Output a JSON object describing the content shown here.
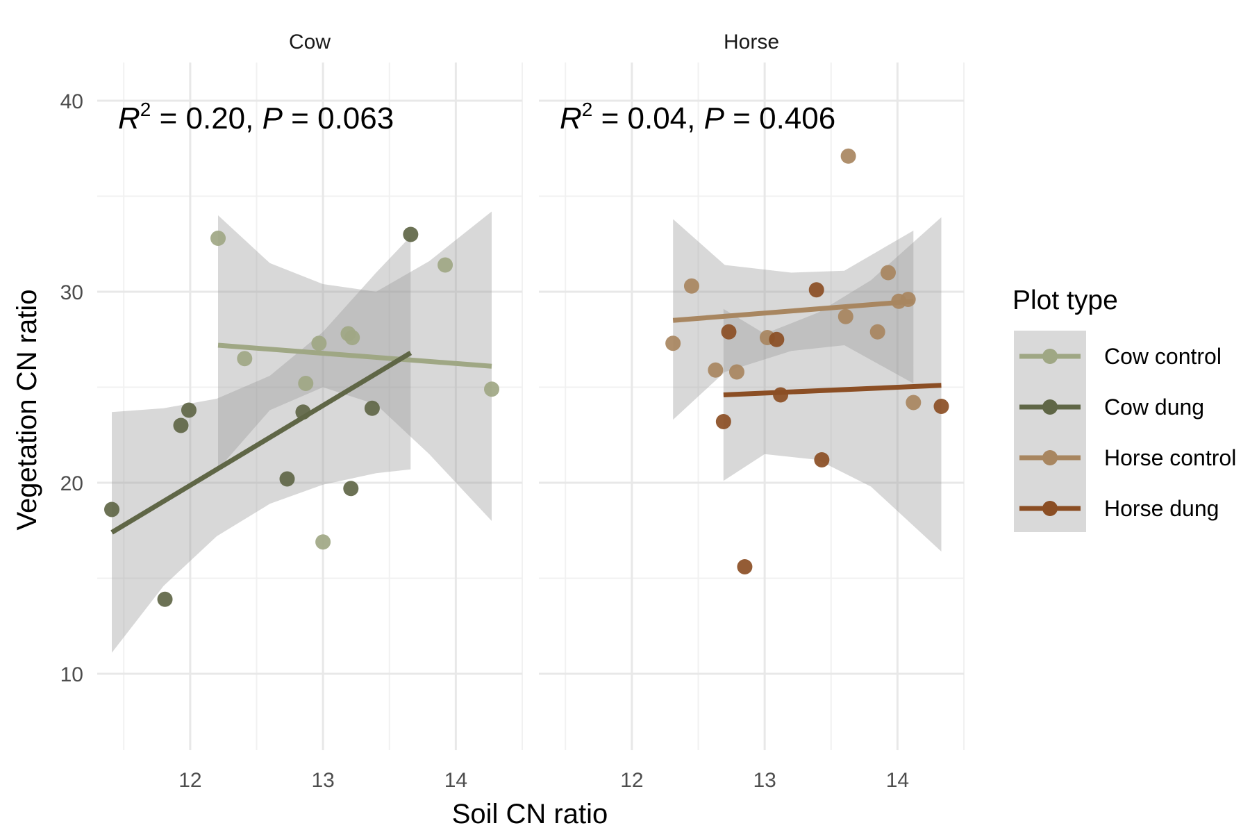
{
  "chart_data": {
    "type": "scatter",
    "xlabel": "Soil CN ratio",
    "ylabel": "Vegetation CN ratio",
    "x_ticks": [
      12,
      13,
      14
    ],
    "y_ticks": [
      10,
      20,
      30,
      40
    ],
    "legend": {
      "title": "Plot type",
      "placement": "right",
      "items": [
        {
          "label": "Cow control",
          "color": "#9fa784"
        },
        {
          "label": "Cow dung",
          "color": "#5f6646"
        },
        {
          "label": "Horse control",
          "color": "#a88660"
        },
        {
          "label": "Horse dung",
          "color": "#8b4e24"
        }
      ]
    },
    "panels": [
      {
        "title": "Cow",
        "annotation": {
          "r2": "0.20",
          "p": "0.063"
        },
        "points": [
          {
            "group": "Cow control",
            "x": 12.21,
            "y": 32.8
          },
          {
            "group": "Cow control",
            "x": 12.41,
            "y": 26.5
          },
          {
            "group": "Cow control",
            "x": 12.87,
            "y": 25.2
          },
          {
            "group": "Cow control",
            "x": 12.97,
            "y": 27.3
          },
          {
            "group": "Cow control",
            "x": 13.0,
            "y": 16.9
          },
          {
            "group": "Cow control",
            "x": 13.19,
            "y": 27.8
          },
          {
            "group": "Cow control",
            "x": 13.22,
            "y": 27.6
          },
          {
            "group": "Cow control",
            "x": 13.92,
            "y": 31.4
          },
          {
            "group": "Cow control",
            "x": 14.27,
            "y": 24.9
          },
          {
            "group": "Cow dung",
            "x": 11.41,
            "y": 18.6
          },
          {
            "group": "Cow dung",
            "x": 11.81,
            "y": 13.9
          },
          {
            "group": "Cow dung",
            "x": 11.93,
            "y": 23.0
          },
          {
            "group": "Cow dung",
            "x": 11.99,
            "y": 23.8
          },
          {
            "group": "Cow dung",
            "x": 12.73,
            "y": 20.2
          },
          {
            "group": "Cow dung",
            "x": 12.85,
            "y": 23.7
          },
          {
            "group": "Cow dung",
            "x": 13.21,
            "y": 19.7
          },
          {
            "group": "Cow dung",
            "x": 13.37,
            "y": 23.9
          },
          {
            "group": "Cow dung",
            "x": 13.66,
            "y": 33.0
          }
        ],
        "fits": [
          {
            "group": "Cow control",
            "x": [
              12.21,
              14.27
            ],
            "y": [
              27.2,
              26.1
            ],
            "band_x": [
              12.21,
              12.6,
              13.0,
              13.4,
              13.8,
              14.27
            ],
            "band_lower": [
              20.7,
              23.8,
              25.0,
              24.1,
              21.5,
              18.0
            ],
            "band_upper": [
              34.0,
              31.5,
              30.4,
              30.0,
              31.6,
              34.2
            ]
          },
          {
            "group": "Cow dung",
            "x": [
              11.41,
              13.66
            ],
            "y": [
              17.4,
              26.8
            ],
            "band_x": [
              11.41,
              11.8,
              12.2,
              12.6,
              13.0,
              13.4,
              13.66
            ],
            "band_lower": [
              11.1,
              14.6,
              17.2,
              18.9,
              19.9,
              20.5,
              20.7
            ],
            "band_upper": [
              23.7,
              23.9,
              24.4,
              25.6,
              27.9,
              31.0,
              32.9
            ]
          }
        ]
      },
      {
        "title": "Horse",
        "annotation": {
          "r2": "0.04",
          "p": "0.406"
        },
        "points": [
          {
            "group": "Horse control",
            "x": 12.31,
            "y": 27.3
          },
          {
            "group": "Horse control",
            "x": 12.45,
            "y": 30.3
          },
          {
            "group": "Horse control",
            "x": 12.63,
            "y": 25.9
          },
          {
            "group": "Horse control",
            "x": 12.79,
            "y": 25.8
          },
          {
            "group": "Horse control",
            "x": 13.02,
            "y": 27.6
          },
          {
            "group": "Horse control",
            "x": 13.61,
            "y": 28.7
          },
          {
            "group": "Horse control",
            "x": 13.63,
            "y": 37.1
          },
          {
            "group": "Horse control",
            "x": 13.85,
            "y": 27.9
          },
          {
            "group": "Horse control",
            "x": 13.93,
            "y": 31.0
          },
          {
            "group": "Horse control",
            "x": 14.01,
            "y": 29.5
          },
          {
            "group": "Horse control",
            "x": 14.08,
            "y": 29.6
          },
          {
            "group": "Horse control",
            "x": 14.12,
            "y": 24.2
          },
          {
            "group": "Horse dung",
            "x": 12.69,
            "y": 23.2
          },
          {
            "group": "Horse dung",
            "x": 12.73,
            "y": 27.9
          },
          {
            "group": "Horse dung",
            "x": 12.85,
            "y": 15.6
          },
          {
            "group": "Horse dung",
            "x": 13.09,
            "y": 27.5
          },
          {
            "group": "Horse dung",
            "x": 13.12,
            "y": 24.6
          },
          {
            "group": "Horse dung",
            "x": 13.39,
            "y": 30.1
          },
          {
            "group": "Horse dung",
            "x": 13.43,
            "y": 21.2
          },
          {
            "group": "Horse dung",
            "x": 14.33,
            "y": 24.0
          }
        ],
        "fits": [
          {
            "group": "Horse control",
            "x": [
              12.31,
              14.12
            ],
            "y": [
              28.5,
              29.5
            ],
            "band_x": [
              12.31,
              12.7,
              13.2,
              13.6,
              14.12
            ],
            "band_lower": [
              23.3,
              25.8,
              26.9,
              27.2,
              25.2
            ],
            "band_upper": [
              33.8,
              31.4,
              31.0,
              31.1,
              33.2
            ]
          },
          {
            "group": "Horse dung",
            "x": [
              12.69,
              14.33
            ],
            "y": [
              24.6,
              25.1
            ],
            "band_x": [
              12.69,
              13.0,
              13.4,
              13.8,
              14.33
            ],
            "band_lower": [
              20.1,
              21.5,
              21.2,
              19.8,
              16.4
            ],
            "band_upper": [
              29.1,
              27.8,
              28.9,
              30.6,
              33.9
            ]
          }
        ]
      }
    ],
    "xlim": [
      11.3,
      14.5
    ],
    "ylim": [
      6.0,
      42.0
    ]
  }
}
